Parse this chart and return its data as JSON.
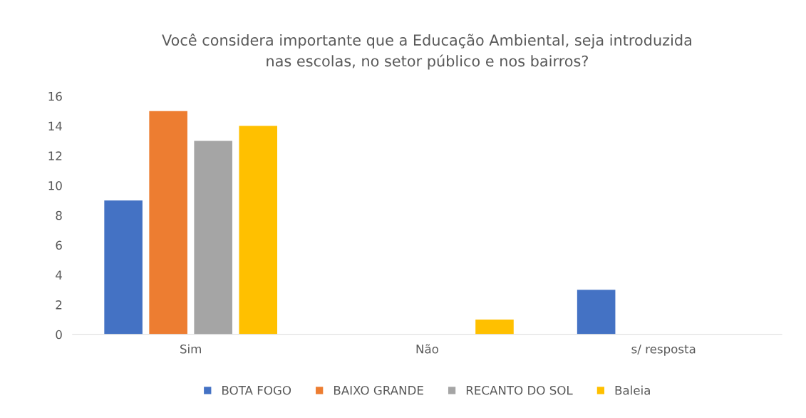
{
  "chart_data": {
    "type": "bar",
    "title": "Você considera importante que a Educação Ambiental, seja introduzida\nnas escolas, no setor público e nos bairros?",
    "categories": [
      "Sim",
      "Não",
      "s/ resposta"
    ],
    "series": [
      {
        "name": "BOTA FOGO",
        "color": "#4472c4",
        "values": [
          9,
          0,
          3
        ]
      },
      {
        "name": "BAIXO GRANDE",
        "color": "#ed7d31",
        "values": [
          15,
          0,
          0
        ]
      },
      {
        "name": "RECANTO DO SOL",
        "color": "#a5a5a5",
        "values": [
          13,
          0,
          0
        ]
      },
      {
        "name": "Baleia",
        "color": "#ffc000",
        "values": [
          14,
          1,
          0
        ]
      }
    ],
    "ylim": [
      0,
      16
    ],
    "yticks": [
      0,
      2,
      4,
      6,
      8,
      10,
      12,
      14,
      16
    ],
    "grid": false,
    "legend": "bottom"
  }
}
